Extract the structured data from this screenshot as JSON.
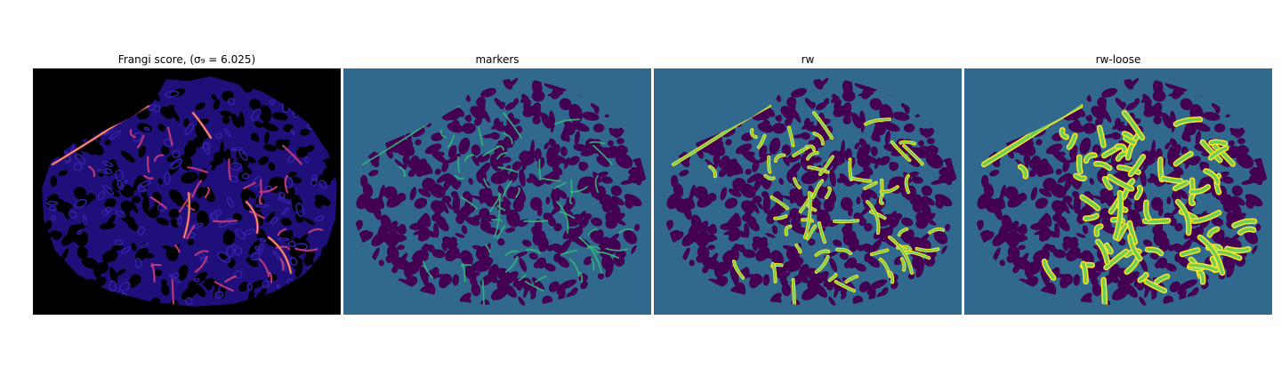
{
  "panels": [
    {
      "title": "Frangi score, (σ₉ = 6.025)",
      "kind": "frangi"
    },
    {
      "title": "markers",
      "kind": "markers"
    },
    {
      "title": "rw",
      "kind": "rw"
    },
    {
      "title": "rw-loose",
      "kind": "rw-loose"
    }
  ],
  "colors": {
    "frangi_background": "#000000",
    "frangi_tissue": "#1f0f7a",
    "frangi_texture": "#3421a8",
    "frangi_vessel": "#b73779",
    "frangi_vessel_bright": "#fcaf5a",
    "segmentation_background": "#31688e",
    "segmentation_texture": "#440154",
    "marker_vessel": "#35b779",
    "vessel_edge": "#fde725",
    "vessel_core": "#6ece58"
  }
}
